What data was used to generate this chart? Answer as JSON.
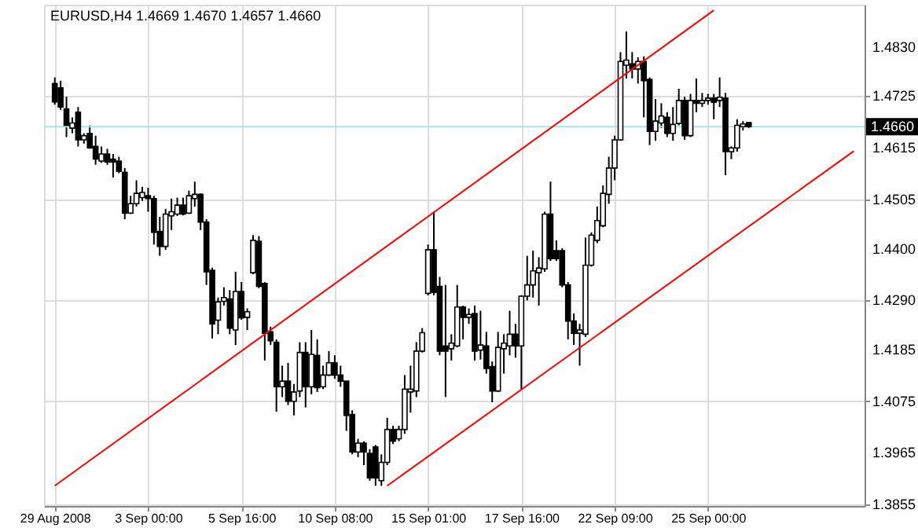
{
  "chart_data": {
    "type": "candlestick",
    "title": "EURUSD,H4  1.4669 1.4670 1.4657 1.4660",
    "categories": [
      "29 Aug 2008",
      null,
      null,
      null,
      null,
      null,
      null,
      null,
      null,
      null,
      null,
      null,
      null,
      null,
      null,
      null,
      "3 Sep 00:00",
      null,
      null,
      null,
      null,
      null,
      null,
      null,
      null,
      null,
      null,
      null,
      null,
      null,
      null,
      null,
      "5 Sep 16:00",
      null,
      null,
      null,
      null,
      null,
      null,
      null,
      null,
      null,
      null,
      null,
      null,
      null,
      null,
      null,
      "10 Sep 08:00",
      null,
      null,
      null,
      null,
      null,
      null,
      null,
      null,
      null,
      null,
      null,
      null,
      null,
      null,
      null,
      "15 Sep 01:00",
      null,
      null,
      null,
      null,
      null,
      null,
      null,
      null,
      null,
      null,
      null,
      null,
      null,
      null,
      null,
      "17 Sep 16:00",
      null,
      null,
      null,
      null,
      null,
      null,
      null,
      null,
      null,
      null,
      null,
      null,
      null,
      null,
      null,
      "22 Sep 09:00",
      null,
      null,
      null,
      null,
      null,
      null,
      null,
      null,
      null,
      null,
      null,
      null,
      null,
      null,
      null,
      "25 Sep 00:00",
      null,
      null,
      null,
      null,
      null,
      null,
      null,
      null,
      null,
      null,
      null,
      null,
      null,
      null,
      null,
      null,
      null,
      null,
      null,
      null,
      null,
      null,
      null,
      null,
      null
    ],
    "ohlc": [
      [
        1.4752,
        1.4765,
        1.4707,
        1.4713
      ],
      [
        1.4743,
        1.4758,
        1.4696,
        1.4702
      ],
      [
        1.4698,
        1.4724,
        1.4638,
        1.4663
      ],
      [
        1.4657,
        1.468,
        1.4646,
        1.4668
      ],
      [
        1.4691,
        1.4702,
        1.4618,
        1.4632
      ],
      [
        1.4632,
        1.4646,
        1.4624,
        1.4641
      ],
      [
        1.4646,
        1.4663,
        1.4613,
        1.4615
      ],
      [
        1.4618,
        1.4641,
        1.4579,
        1.4591
      ],
      [
        1.4587,
        1.4618,
        1.4583,
        1.4602
      ],
      [
        1.4602,
        1.4613,
        1.4579,
        1.4585
      ],
      [
        1.4591,
        1.4602,
        1.4552,
        1.4585
      ],
      [
        1.4587,
        1.4596,
        1.4561,
        1.4565
      ],
      [
        1.4563,
        1.4572,
        1.4463,
        1.4476
      ],
      [
        1.4476,
        1.4513,
        1.4474,
        1.4496
      ],
      [
        1.4496,
        1.4546,
        1.449,
        1.4518
      ],
      [
        1.4509,
        1.4532,
        1.4502,
        1.452
      ],
      [
        1.4513,
        1.453,
        1.4479,
        1.4507
      ],
      [
        1.4507,
        1.4513,
        1.4409,
        1.4435
      ],
      [
        1.4437,
        1.4468,
        1.4385,
        1.4405
      ],
      [
        1.4405,
        1.4485,
        1.4398,
        1.4474
      ],
      [
        1.447,
        1.4507,
        1.444,
        1.4479
      ],
      [
        1.4474,
        1.4509,
        1.447,
        1.4493
      ],
      [
        1.4493,
        1.4509,
        1.4471,
        1.4474
      ],
      [
        1.4476,
        1.4524,
        1.4474,
        1.4513
      ],
      [
        1.4507,
        1.4543,
        1.449,
        1.4516
      ],
      [
        1.4516,
        1.4518,
        1.444,
        1.4457
      ],
      [
        1.4457,
        1.4463,
        1.4323,
        1.4351
      ],
      [
        1.4354,
        1.436,
        1.4209,
        1.424
      ],
      [
        1.4248,
        1.4296,
        1.4218,
        1.4287
      ],
      [
        1.4288,
        1.4318,
        1.4279,
        1.4296
      ],
      [
        1.4293,
        1.4312,
        1.4218,
        1.4231
      ],
      [
        1.4227,
        1.4351,
        1.4195,
        1.4309
      ],
      [
        1.4309,
        1.4329,
        1.4249,
        1.4253
      ],
      [
        1.4254,
        1.4273,
        1.4227,
        1.4266
      ],
      [
        1.4349,
        1.4429,
        1.4346,
        1.4418
      ],
      [
        1.4416,
        1.4427,
        1.4316,
        1.432
      ],
      [
        1.4326,
        1.4329,
        1.4162,
        1.422
      ],
      [
        1.4223,
        1.4234,
        1.4195,
        1.4204
      ],
      [
        1.4201,
        1.4207,
        1.4053,
        1.4106
      ],
      [
        1.4106,
        1.4151,
        1.4084,
        1.4118
      ],
      [
        1.4118,
        1.4157,
        1.4067,
        1.4075
      ],
      [
        1.4075,
        1.4112,
        1.4045,
        1.4095
      ],
      [
        1.4097,
        1.4201,
        1.4084,
        1.4179
      ],
      [
        1.4179,
        1.4201,
        1.4062,
        1.4106
      ],
      [
        1.4106,
        1.4227,
        1.409,
        1.4175
      ],
      [
        1.4173,
        1.4207,
        1.4095,
        1.4104
      ],
      [
        1.4106,
        1.4151,
        1.4101,
        1.4131
      ],
      [
        1.4131,
        1.4182,
        1.4129,
        1.4157
      ],
      [
        1.4157,
        1.4173,
        1.4123,
        1.4131
      ],
      [
        1.4131,
        1.4151,
        1.4106,
        1.4118
      ],
      [
        1.4118,
        1.4118,
        1.4012,
        1.4045
      ],
      [
        1.4047,
        1.4056,
        1.3962,
        1.3967
      ],
      [
        1.3967,
        1.3995,
        1.3956,
        1.3986
      ],
      [
        1.3986,
        1.399,
        1.3939,
        1.3967
      ],
      [
        1.3964,
        1.3973,
        1.3906,
        1.3912
      ],
      [
        1.3978,
        1.3982,
        1.3895,
        1.3912
      ],
      [
        1.3906,
        1.3962,
        1.3895,
        1.3945
      ],
      [
        1.3945,
        1.404,
        1.3939,
        1.4015
      ],
      [
        1.4015,
        1.4023,
        1.3984,
        1.399
      ],
      [
        1.3995,
        1.4023,
        1.399,
        1.4015
      ],
      [
        1.4015,
        1.4131,
        1.4006,
        1.4101
      ],
      [
        1.4095,
        1.4151,
        1.4051,
        1.4101
      ],
      [
        1.4097,
        1.4201,
        1.4084,
        1.4182
      ],
      [
        1.4182,
        1.4231,
        1.4179,
        1.4221
      ],
      [
        1.4305,
        1.4409,
        1.4301,
        1.4398
      ],
      [
        1.4398,
        1.4479,
        1.4301,
        1.4307
      ],
      [
        1.432,
        1.434,
        1.4173,
        1.4182
      ],
      [
        1.4193,
        1.4323,
        1.4084,
        1.4182
      ],
      [
        1.4187,
        1.4218,
        1.4162,
        1.4199
      ],
      [
        1.4193,
        1.4323,
        1.419,
        1.4276
      ],
      [
        1.4276,
        1.4279,
        1.4207,
        1.4254
      ],
      [
        1.4254,
        1.4273,
        1.424,
        1.426
      ],
      [
        1.4262,
        1.4279,
        1.4162,
        1.4182
      ],
      [
        1.4184,
        1.4268,
        1.4164,
        1.4195
      ],
      [
        1.4193,
        1.4223,
        1.4134,
        1.4145
      ],
      [
        1.4149,
        1.416,
        1.4073,
        1.4097
      ],
      [
        1.4097,
        1.4223,
        1.4095,
        1.419
      ],
      [
        1.4187,
        1.4218,
        1.4134,
        1.4199
      ],
      [
        1.4193,
        1.4268,
        1.4173,
        1.4218
      ],
      [
        1.4218,
        1.424,
        1.4168,
        1.4193
      ],
      [
        1.4193,
        1.4301,
        1.4101,
        1.4299
      ],
      [
        1.4299,
        1.4385,
        1.429,
        1.4323
      ],
      [
        1.4323,
        1.4396,
        1.4296,
        1.4353
      ],
      [
        1.4349,
        1.4382,
        1.4279,
        1.4359
      ],
      [
        1.4357,
        1.4479,
        1.4351,
        1.4474
      ],
      [
        1.4474,
        1.4543,
        1.4374,
        1.4379
      ],
      [
        1.4396,
        1.4418,
        1.4374,
        1.4379
      ],
      [
        1.4396,
        1.4401,
        1.4318,
        1.4323
      ],
      [
        1.4323,
        1.4329,
        1.4207,
        1.4246
      ],
      [
        1.4246,
        1.4262,
        1.4195,
        1.422
      ],
      [
        1.422,
        1.424,
        1.4151,
        1.4227
      ],
      [
        1.4218,
        1.4424,
        1.4212,
        1.4365
      ],
      [
        1.4365,
        1.4435,
        1.4362,
        1.4429
      ],
      [
        1.4418,
        1.449,
        1.4412,
        1.446
      ],
      [
        1.4449,
        1.4535,
        1.4446,
        1.4518
      ],
      [
        1.4516,
        1.4596,
        1.4496,
        1.4572
      ],
      [
        1.4572,
        1.4641,
        1.4546,
        1.4632
      ],
      [
        1.4632,
        1.4819,
        1.463,
        1.4799
      ],
      [
        1.4791,
        1.4863,
        1.4763,
        1.4802
      ],
      [
        1.4794,
        1.4819,
        1.4763,
        1.4783
      ],
      [
        1.4783,
        1.4808,
        1.4752,
        1.4799
      ],
      [
        1.4799,
        1.481,
        1.468,
        1.4758
      ],
      [
        1.4761,
        1.4765,
        1.4621,
        1.465
      ],
      [
        1.465,
        1.4719,
        1.463,
        1.4672
      ],
      [
        1.4668,
        1.471,
        1.4657,
        1.4683
      ],
      [
        1.468,
        1.4691,
        1.4638,
        1.4646
      ],
      [
        1.4646,
        1.4702,
        1.463,
        1.4665
      ],
      [
        1.4667,
        1.4741,
        1.4663,
        1.4716
      ],
      [
        1.4716,
        1.4724,
        1.4632,
        1.4641
      ],
      [
        1.4641,
        1.473,
        1.4638,
        1.4716
      ],
      [
        1.4716,
        1.4763,
        1.4691,
        1.471
      ],
      [
        1.471,
        1.4732,
        1.4702,
        1.4716
      ],
      [
        1.4716,
        1.473,
        1.4707,
        1.4721
      ],
      [
        1.4721,
        1.473,
        1.4676,
        1.4712
      ],
      [
        1.4716,
        1.4765,
        1.4702,
        1.4723
      ],
      [
        1.4721,
        1.4732,
        1.4557,
        1.4607
      ],
      [
        1.4607,
        1.4618,
        1.4591,
        1.4615
      ],
      [
        1.4615,
        1.4676,
        1.4607,
        1.4663
      ],
      [
        1.466,
        1.4672,
        1.4652,
        1.4666
      ],
      [
        1.4669,
        1.467,
        1.4657,
        1.466
      ],
      null,
      null,
      null,
      null,
      null,
      null,
      null,
      null,
      null,
      null,
      null,
      null,
      null,
      null,
      null,
      null,
      null,
      null
    ],
    "series": [
      {
        "type": "line",
        "color": "#ff0000",
        "values": [
          1.3895,
          null,
          null,
          null,
          null,
          null,
          null,
          null,
          null,
          null,
          null,
          null,
          null,
          null,
          null,
          null,
          null,
          null,
          null,
          null,
          null,
          null,
          null,
          null,
          null,
          null,
          null,
          null,
          null,
          null,
          null,
          null,
          null,
          null,
          null,
          null,
          null,
          null,
          null,
          null,
          null,
          null,
          null,
          null,
          null,
          null,
          null,
          null,
          null,
          null,
          null,
          null,
          null,
          null,
          null,
          null,
          null,
          null,
          null,
          null,
          null,
          null,
          null,
          null,
          null,
          null,
          null,
          null,
          null,
          null,
          null,
          null,
          null,
          null,
          null,
          null,
          null,
          null,
          null,
          null,
          null,
          null,
          null,
          null,
          null,
          null,
          null,
          null,
          null,
          null,
          null,
          null,
          null,
          null,
          null,
          null,
          null,
          null,
          null,
          null,
          null,
          null,
          null,
          null,
          null,
          null,
          null,
          null,
          null,
          null,
          null,
          null,
          null,
          1.4908,
          null,
          null,
          null,
          null,
          null,
          null,
          null,
          null,
          null,
          null,
          null,
          null,
          null,
          null,
          null,
          null,
          null,
          null,
          null,
          null,
          null,
          null,
          null,
          null
        ]
      },
      {
        "type": "line",
        "color": "#ff0000",
        "values": [
          null,
          null,
          null,
          null,
          null,
          null,
          null,
          null,
          null,
          null,
          null,
          null,
          null,
          null,
          null,
          null,
          null,
          null,
          null,
          null,
          null,
          null,
          null,
          null,
          null,
          null,
          null,
          null,
          null,
          null,
          null,
          null,
          null,
          null,
          null,
          null,
          null,
          null,
          null,
          null,
          null,
          null,
          null,
          null,
          null,
          null,
          null,
          null,
          null,
          null,
          null,
          null,
          null,
          null,
          null,
          null,
          null,
          1.3895,
          null,
          null,
          null,
          null,
          null,
          null,
          null,
          null,
          null,
          null,
          null,
          null,
          null,
          null,
          null,
          null,
          null,
          null,
          null,
          null,
          null,
          null,
          null,
          null,
          null,
          null,
          null,
          null,
          null,
          null,
          null,
          null,
          null,
          null,
          null,
          null,
          null,
          null,
          null,
          null,
          null,
          null,
          null,
          null,
          null,
          null,
          null,
          null,
          null,
          null,
          null,
          null,
          null,
          null,
          null,
          null,
          null,
          null,
          null,
          null,
          null,
          null,
          null,
          null,
          null,
          null,
          null,
          null,
          null,
          null,
          null,
          null,
          null,
          null,
          null,
          null,
          null,
          null,
          null,
          1.4608
        ]
      }
    ],
    "ylim": [
      1.3852,
      1.492
    ],
    "yticks": [
      1.3855,
      1.3965,
      1.4075,
      1.4185,
      {
        "value": 1.429,
        "label": "1.4290"
      },
      {
        "value": 1.44,
        "label": "1.4400"
      },
      1.4505,
      1.4615,
      1.4725,
      {
        "value": 1.483,
        "label": "1.4830"
      }
    ],
    "ref_lines": [
      {
        "axis": "y",
        "value": 1.466,
        "label": "1.4660",
        "color": "#a8e4e4"
      }
    ],
    "grid": true
  }
}
